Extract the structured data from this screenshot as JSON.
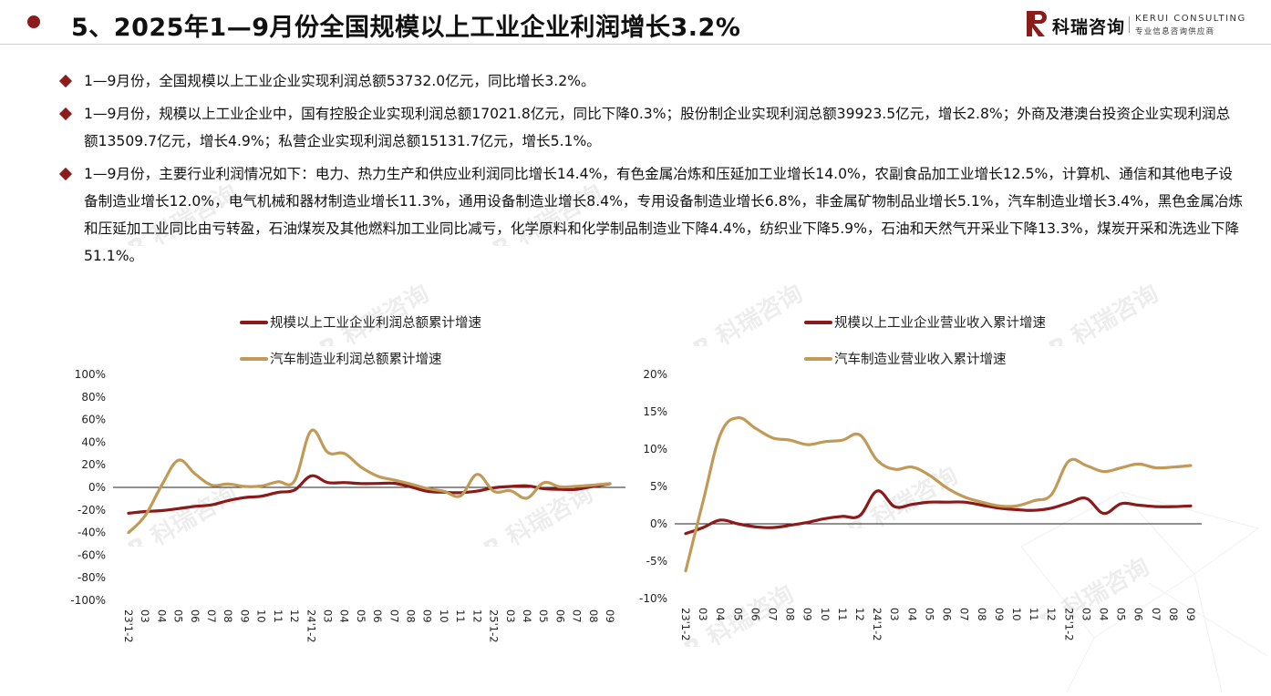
{
  "header": {
    "title": "5、2025年1—9月份全国规模以上工业企业利润增长3.2%",
    "logo_cn": "科瑞咨询",
    "logo_en": "KERUI CONSULTING",
    "logo_sub": "专业信息咨询供应商"
  },
  "bullets": [
    "1—9月份，全国规模以上工业企业实现利润总额53732.0亿元，同比增长3.2%。",
    "1—9月份，规模以上工业企业中，国有控股企业实现利润总额17021.8亿元，同比下降0.3%；股份制企业实现利润总额39923.5亿元，增长2.8%；外商及港澳台投资企业实现利润总额13509.7亿元，增长4.9%；私营企业实现利润总额15131.7亿元，增长5.1%。",
    "1—9月份，主要行业利润情况如下：电力、热力生产和供应业利润同比增长14.4%，有色金属冶炼和压延加工业增长14.0%，农副食品加工业增长12.5%，计算机、通信和其他电子设备制造业增长12.0%，电气机械和器材制造业增长11.3%，通用设备制造业增长8.4%，专用设备制造业增长6.8%，非金属矿物制品业增长5.1%，汽车制造业增长3.4%，黑色金属冶炼和压延加工业同比由亏转盈，石油煤炭及其他燃料加工业同比减亏，化学原料和化学制品制造业下降4.4%，纺织业下降5.9%，石油和天然气开采业下降13.3%，煤炭开采和洗选业下降51.1%。"
  ],
  "colors": {
    "accent": "#8c1c1c",
    "series_dark": "#8b1a1a",
    "series_gold": "#c29a57"
  },
  "chart_data": [
    {
      "type": "line",
      "categories": [
        "23'1-2",
        "03",
        "04",
        "05",
        "06",
        "07",
        "08",
        "09",
        "10",
        "11",
        "12",
        "24'1-2",
        "03",
        "04",
        "05",
        "06",
        "07",
        "08",
        "09",
        "10",
        "11",
        "12",
        "25'1-2",
        "03",
        "04",
        "05",
        "06",
        "07",
        "08",
        "09"
      ],
      "series": [
        {
          "name": "规模以上工业企业利润总额累计增速",
          "color": "#8b1a1a",
          "values": [
            -22.9,
            -21.4,
            -20.6,
            -18.8,
            -16.8,
            -15.5,
            -11.7,
            -9.0,
            -7.8,
            -4.4,
            -2.3,
            10.2,
            4.3,
            4.3,
            3.4,
            3.5,
            3.6,
            0.5,
            -3.5,
            -4.3,
            -4.7,
            -3.3,
            -0.3,
            0.8,
            1.4,
            -1.1,
            -1.8,
            -1.7,
            0.9,
            3.2
          ]
        },
        {
          "name": "汽车制造业利润总额累计增速",
          "color": "#c29a57",
          "values": [
            -40.0,
            -25.0,
            2.0,
            24.0,
            12.0,
            2.0,
            3.0,
            0.8,
            1.2,
            5.0,
            5.9,
            50.2,
            31.0,
            30.0,
            18.0,
            10.0,
            6.5,
            3.0,
            -1.0,
            -3.5,
            -7.5,
            11.5,
            -3.5,
            -3.0,
            -9.5,
            4.0,
            0.5,
            1.0,
            2.0,
            3.4
          ]
        }
      ],
      "y_ticks": [
        "100%",
        "80%",
        "60%",
        "40%",
        "20%",
        "0%",
        "-20%",
        "-40%",
        "-60%",
        "-80%",
        "-100%"
      ],
      "ylim": [
        -100,
        100
      ]
    },
    {
      "type": "line",
      "categories": [
        "23'1-2",
        "03",
        "04",
        "05",
        "06",
        "07",
        "08",
        "09",
        "10",
        "11",
        "12",
        "24'1-2",
        "03",
        "04",
        "05",
        "06",
        "07",
        "08",
        "09",
        "10",
        "11",
        "12",
        "25'1-2",
        "03",
        "04",
        "05",
        "06",
        "07",
        "08",
        "09"
      ],
      "series": [
        {
          "name": "规模以上工业企业营业收入累计增速",
          "color": "#8b1a1a",
          "values": [
            -1.3,
            -0.5,
            0.5,
            0.0,
            -0.4,
            -0.5,
            -0.2,
            0.2,
            0.7,
            1.0,
            1.1,
            4.4,
            2.3,
            2.6,
            2.9,
            2.9,
            2.9,
            2.5,
            2.1,
            1.9,
            1.8,
            2.1,
            2.8,
            3.4,
            1.4,
            2.7,
            2.5,
            2.3,
            2.3,
            2.4
          ]
        },
        {
          "name": "汽车制造业营业收入累计增速",
          "color": "#c29a57",
          "values": [
            -6.3,
            3.0,
            12.0,
            14.2,
            12.8,
            11.5,
            11.2,
            10.6,
            11.0,
            11.2,
            11.9,
            8.5,
            7.3,
            7.6,
            6.5,
            4.8,
            3.6,
            2.9,
            2.4,
            2.4,
            3.1,
            3.9,
            8.4,
            7.8,
            7.0,
            7.5,
            8.0,
            7.5,
            7.6,
            7.8
          ]
        }
      ],
      "y_ticks": [
        "20%",
        "15%",
        "10%",
        "5%",
        "0%",
        "-5%",
        "-10%"
      ],
      "ylim": [
        -10,
        20
      ]
    }
  ]
}
